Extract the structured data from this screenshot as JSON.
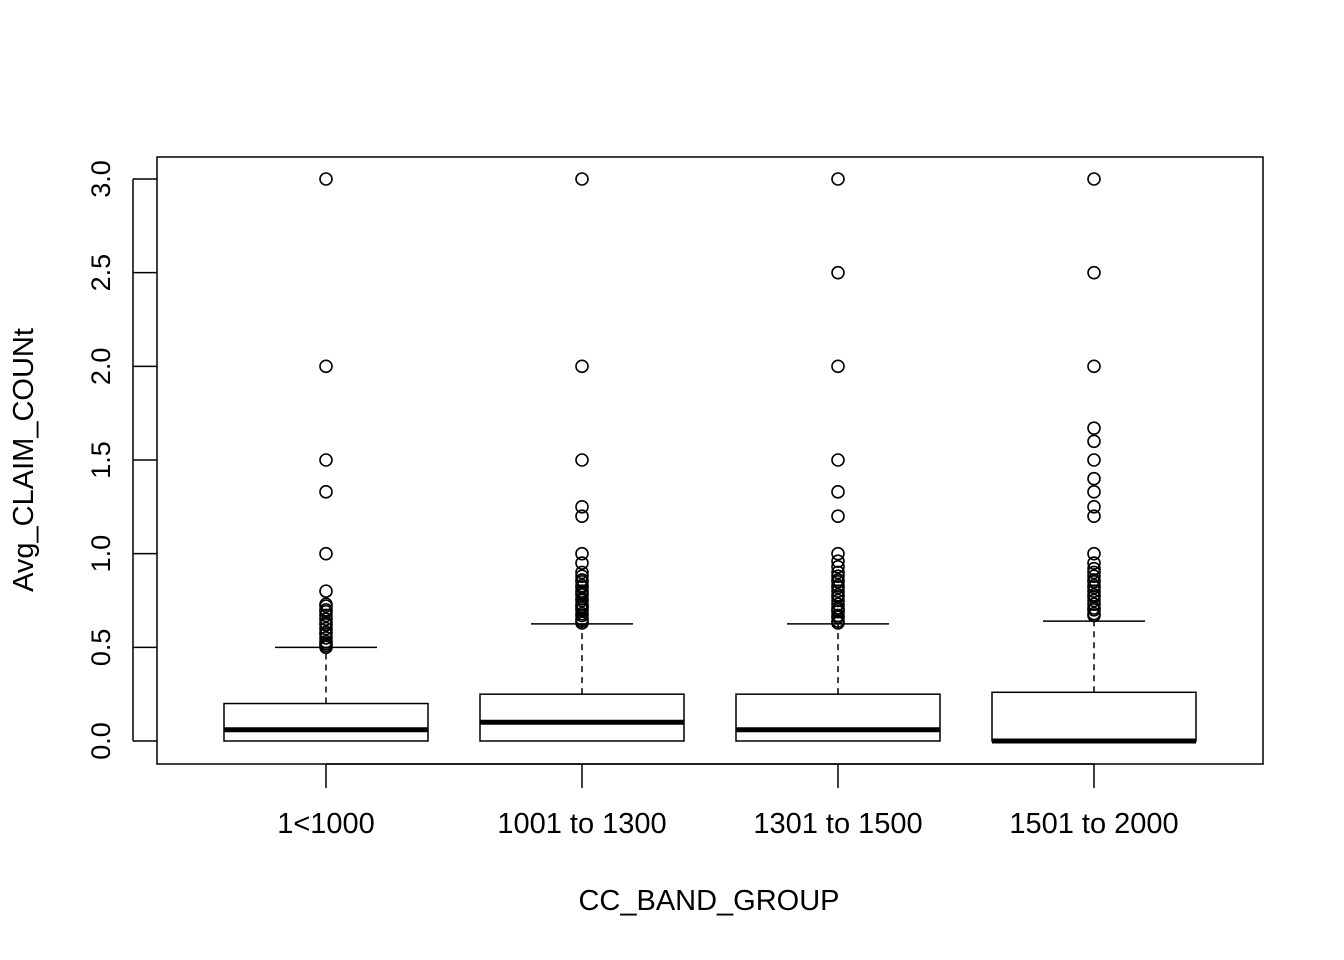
{
  "chart_data": {
    "type": "boxplot",
    "title": "",
    "xlabel": "CC_BAND_GROUP",
    "ylabel": "Avg_CLAIM_COUNt",
    "ylim": [
      -0.12,
      3.12
    ],
    "yticks": [
      "0.0",
      "0.5",
      "1.0",
      "1.5",
      "2.0",
      "2.5",
      "3.0"
    ],
    "ytick_values": [
      0,
      0.5,
      1.0,
      1.5,
      2.0,
      2.5,
      3.0
    ],
    "grid": false,
    "legend": "none",
    "categories": [
      "1<1000",
      "1001 to 1300",
      "1301 to 1500",
      "1501 to 2000"
    ],
    "boxes": [
      {
        "name": "1<1000",
        "min": 0,
        "q1": 0,
        "median": 0.06,
        "q3": 0.2,
        "whisker_high": 0.5,
        "outliers": [
          0.5,
          0.51,
          0.52,
          0.53,
          0.55,
          0.57,
          0.58,
          0.6,
          0.62,
          0.63,
          0.65,
          0.67,
          0.69,
          0.7,
          0.72,
          0.73,
          0.8,
          1.0,
          1.33,
          1.5,
          2.0,
          3.0
        ]
      },
      {
        "name": "1001 to 1300",
        "min": 0,
        "q1": 0,
        "median": 0.1,
        "q3": 0.25,
        "whisker_high": 0.625,
        "outliers": [
          0.63,
          0.64,
          0.65,
          0.67,
          0.68,
          0.7,
          0.71,
          0.72,
          0.73,
          0.75,
          0.76,
          0.78,
          0.79,
          0.8,
          0.82,
          0.83,
          0.85,
          0.86,
          0.88,
          0.9,
          0.95,
          1.0,
          1.2,
          1.25,
          1.5,
          2.0,
          3.0
        ]
      },
      {
        "name": "1301 to 1500",
        "min": 0,
        "q1": 0,
        "median": 0.06,
        "q3": 0.25,
        "whisker_high": 0.625,
        "outliers": [
          0.63,
          0.64,
          0.66,
          0.67,
          0.69,
          0.7,
          0.71,
          0.73,
          0.75,
          0.77,
          0.78,
          0.8,
          0.82,
          0.83,
          0.85,
          0.86,
          0.88,
          0.9,
          0.93,
          0.96,
          1.0,
          1.2,
          1.33,
          1.5,
          2.0,
          2.5,
          3.0
        ]
      },
      {
        "name": "1501 to 2000",
        "min": 0,
        "q1": 0,
        "median": 0,
        "q3": 0.26,
        "whisker_high": 0.64,
        "outliers": [
          0.67,
          0.68,
          0.7,
          0.71,
          0.73,
          0.75,
          0.77,
          0.78,
          0.8,
          0.82,
          0.83,
          0.85,
          0.86,
          0.88,
          0.9,
          0.92,
          0.95,
          1.0,
          1.2,
          1.25,
          1.33,
          1.4,
          1.5,
          1.6,
          1.67,
          2.0,
          2.5,
          3.0
        ]
      }
    ]
  }
}
